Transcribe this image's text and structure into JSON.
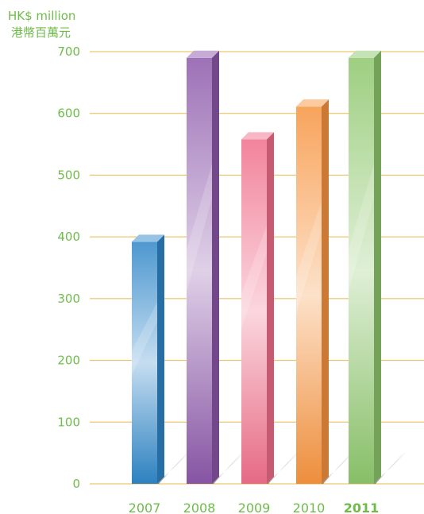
{
  "chart_data": {
    "type": "bar",
    "unit_label_en": "HK$ million",
    "unit_label_zh": "港幣百萬元",
    "categories": [
      "2007",
      "2008",
      "2009",
      "2010",
      "2011"
    ],
    "highlight_category": "2011",
    "values": [
      392,
      690,
      558,
      611,
      690
    ],
    "ylim": [
      0,
      700
    ],
    "yticks": [
      0,
      100,
      200,
      300,
      400,
      500,
      600,
      700
    ],
    "grid": true,
    "bar_colors": [
      "#2f86c8",
      "#8c58aa",
      "#f06e8a",
      "#f7943f",
      "#8dc66b"
    ],
    "text_color": "#6fbb4a",
    "grid_color": "#e8b84a"
  }
}
